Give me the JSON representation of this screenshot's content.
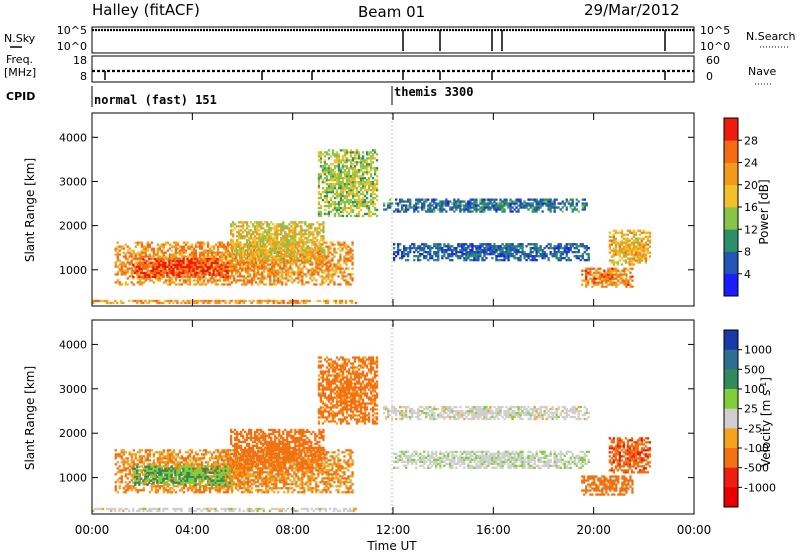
{
  "header": {
    "station": "Halley (fitACF)",
    "beam": "Beam 01",
    "date": "29/Mar/2012"
  },
  "panels": {
    "nsky": {
      "label": "N.Sky",
      "ticks_left": [
        "10^5",
        "10^0"
      ],
      "right_label": "N.Search",
      "ticks_right": [
        "10^5",
        "10^0"
      ]
    },
    "freq": {
      "label_line1": "Freq.",
      "label_line2": "[MHz]",
      "ticks_left": [
        "18",
        "8"
      ],
      "right_label": "Nave",
      "ticks_right": [
        "60",
        "0"
      ]
    },
    "cpid": {
      "label": "CPID",
      "modes": [
        {
          "text": "normal (fast) 151",
          "start_hour": 0.0
        },
        {
          "text": "themis 3300",
          "start_hour": 12.0
        }
      ]
    }
  },
  "chart_data": [
    {
      "type": "heatmap",
      "name": "power",
      "ylabel": "Slant Range [km]",
      "xlabel": "Time UT",
      "x_range_hours": [
        0,
        24
      ],
      "ylim": [
        180,
        4550
      ],
      "yticks": [
        "1000",
        "2000",
        "3000",
        "4000"
      ],
      "xticks": [
        "00:00",
        "04:00",
        "08:00",
        "12:00",
        "16:00",
        "20:00",
        "00:00"
      ],
      "colorbar": {
        "label": "Power [dB]",
        "ticks": [
          "4",
          "8",
          "12",
          "16",
          "20",
          "24",
          "28"
        ],
        "colors": [
          "#1b1bff",
          "#2455b5",
          "#2b8f6a",
          "#86c44a",
          "#f2c12a",
          "#f39a1c",
          "#f56a13",
          "#ee1c0e"
        ]
      },
      "regions": [
        {
          "t0": 0.9,
          "t1": 10.4,
          "r0": 650,
          "r1": 1600,
          "value": 23
        },
        {
          "t0": 1.6,
          "t1": 5.5,
          "r0": 820,
          "r1": 1250,
          "value": 28
        },
        {
          "t0": 5.5,
          "t1": 9.2,
          "r0": 1200,
          "r1": 2100,
          "value": 18
        },
        {
          "t0": 9.0,
          "t1": 11.4,
          "r0": 2200,
          "r1": 3700,
          "value": 15
        },
        {
          "t0": 11.6,
          "t1": 19.8,
          "r0": 2300,
          "r1": 2600,
          "value": 8
        },
        {
          "t0": 12.0,
          "t1": 19.8,
          "r0": 1200,
          "r1": 1600,
          "value": 7
        },
        {
          "t0": 19.5,
          "t1": 21.5,
          "r0": 600,
          "r1": 1050,
          "value": 24
        },
        {
          "t0": 20.6,
          "t1": 22.2,
          "r0": 1100,
          "r1": 1900,
          "value": 20
        },
        {
          "t0": 0.0,
          "t1": 10.5,
          "r0": 230,
          "r1": 300,
          "value": 22
        }
      ]
    },
    {
      "type": "heatmap",
      "name": "velocity",
      "ylabel": "Slant Range [km]",
      "xlabel": "Time UT",
      "x_range_hours": [
        0,
        24
      ],
      "ylim": [
        180,
        4550
      ],
      "yticks": [
        "1000",
        "2000",
        "3000",
        "4000"
      ],
      "xticks": [
        "00:00",
        "04:00",
        "08:00",
        "12:00",
        "16:00",
        "20:00",
        "00:00"
      ],
      "colorbar": {
        "label": "Velocity [m s^-1]",
        "ticks": [
          "1000",
          "500",
          "100",
          "25",
          "-25",
          "-100",
          "-500",
          "-1000"
        ],
        "colors": [
          "#1a3aa8",
          "#2c6f90",
          "#2f8b5a",
          "#7fcf3a",
          "#cfcfcf",
          "#f5a21f",
          "#f27212",
          "#ee1f0e",
          "#e80000"
        ]
      },
      "regions": [
        {
          "t0": 0.9,
          "t1": 10.4,
          "r0": 650,
          "r1": 1600,
          "value": -100
        },
        {
          "t0": 1.6,
          "t1": 5.5,
          "r0": 820,
          "r1": 1250,
          "value": 100
        },
        {
          "t0": 5.5,
          "t1": 9.2,
          "r0": 1200,
          "r1": 2100,
          "value": -200
        },
        {
          "t0": 9.0,
          "t1": 11.4,
          "r0": 2200,
          "r1": 3700,
          "value": -150
        },
        {
          "t0": 11.6,
          "t1": 19.8,
          "r0": 2300,
          "r1": 2600,
          "value": 0
        },
        {
          "t0": 12.0,
          "t1": 19.8,
          "r0": 1200,
          "r1": 1600,
          "value": 10
        },
        {
          "t0": 19.5,
          "t1": 21.5,
          "r0": 600,
          "r1": 1050,
          "value": -300
        },
        {
          "t0": 20.6,
          "t1": 22.2,
          "r0": 1100,
          "r1": 1900,
          "value": -400
        },
        {
          "t0": 0.0,
          "t1": 10.5,
          "r0": 230,
          "r1": 300,
          "value": 0
        }
      ]
    }
  ]
}
